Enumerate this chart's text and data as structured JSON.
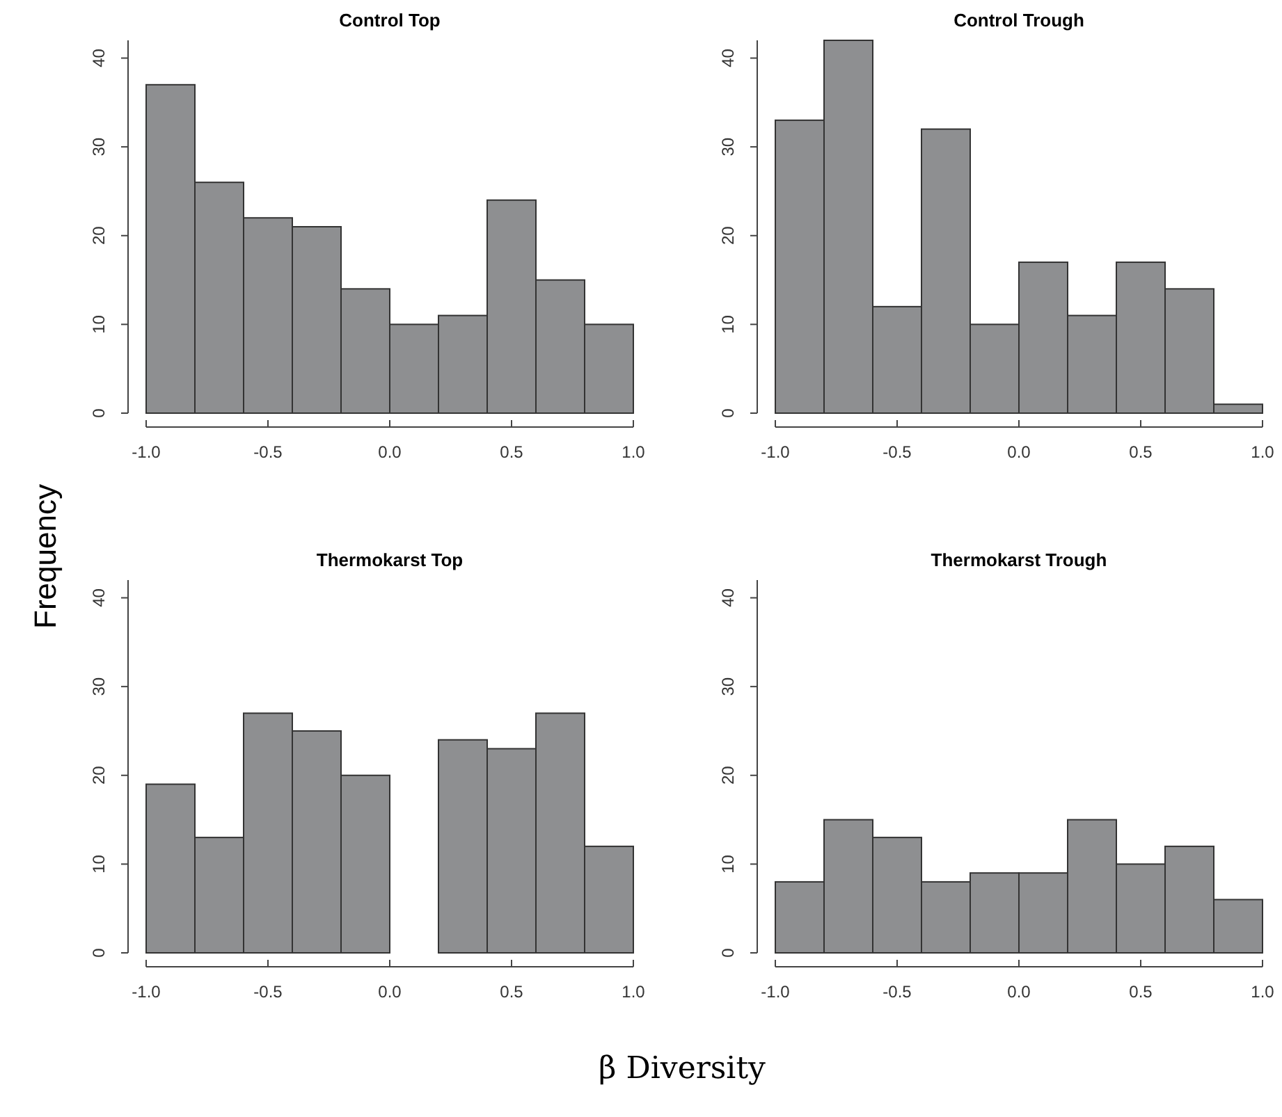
{
  "chart_data": [
    {
      "type": "histogram",
      "title": "Control Top",
      "ylabel": "Frequency",
      "bins": [
        -1,
        -0.8,
        -0.6,
        -0.4,
        -0.2,
        0,
        0.2,
        0.4,
        0.6,
        0.8,
        1
      ],
      "values": [
        37,
        26,
        22,
        21,
        14,
        10,
        11,
        24,
        15,
        10
      ],
      "color": "#8e8f91",
      "xlim": [
        -1,
        1
      ],
      "xticks": [
        {
          "value": -1,
          "label": "-1.0"
        },
        {
          "value": -0.5,
          "label": "-0.5"
        },
        {
          "value": 0,
          "label": "0.0"
        },
        {
          "value": 0.5,
          "label": "0.5"
        },
        {
          "value": 1,
          "label": "1.0"
        }
      ],
      "ylim": [
        0,
        42
      ],
      "yticks": [
        0,
        10,
        20,
        30,
        40
      ]
    },
    {
      "type": "histogram",
      "title": "Control Trough",
      "bins": [
        -1,
        -0.8,
        -0.6,
        -0.4,
        -0.2,
        0,
        0.2,
        0.4,
        0.6,
        0.8,
        1
      ],
      "values": [
        33,
        42,
        12,
        32,
        10,
        17,
        11,
        17,
        14,
        1
      ],
      "color": "#8e8f91",
      "xlim": [
        -1,
        1
      ],
      "xticks": [
        {
          "value": -1,
          "label": "-1.0"
        },
        {
          "value": -0.5,
          "label": "-0.5"
        },
        {
          "value": 0,
          "label": "0.0"
        },
        {
          "value": 0.5,
          "label": "0.5"
        },
        {
          "value": 1,
          "label": "1.0"
        }
      ],
      "ylim": [
        0,
        42
      ],
      "yticks": [
        0,
        10,
        20,
        30,
        40
      ]
    },
    {
      "type": "histogram",
      "title": "Thermokarst Top",
      "xlabel": "β Diversity",
      "bins": [
        -1,
        -0.8,
        -0.6,
        -0.4,
        -0.2,
        0,
        0.2,
        0.4,
        0.6,
        0.8,
        1
      ],
      "values": [
        19,
        13,
        27,
        25,
        20,
        0,
        24,
        23,
        27,
        12
      ],
      "color": "#8e8f91",
      "xlim": [
        -1,
        1
      ],
      "xticks": [
        {
          "value": -1,
          "label": "-1.0"
        },
        {
          "value": -0.5,
          "label": "-0.5"
        },
        {
          "value": 0,
          "label": "0.0"
        },
        {
          "value": 0.5,
          "label": "0.5"
        },
        {
          "value": 1,
          "label": "1.0"
        }
      ],
      "ylim": [
        0,
        42
      ],
      "yticks": [
        0,
        10,
        20,
        30,
        40
      ]
    },
    {
      "type": "histogram",
      "title": "Thermokarst Trough",
      "bins": [
        -1,
        -0.8,
        -0.6,
        -0.4,
        -0.2,
        0,
        0.2,
        0.4,
        0.6,
        0.8,
        1
      ],
      "values": [
        8,
        15,
        13,
        8,
        9,
        9,
        15,
        10,
        12,
        6
      ],
      "color": "#8e8f91",
      "xlim": [
        -1,
        1
      ],
      "xticks": [
        {
          "value": -1,
          "label": "-1.0"
        },
        {
          "value": -0.5,
          "label": "-0.5"
        },
        {
          "value": 0,
          "label": "0.0"
        },
        {
          "value": 0.5,
          "label": "0.5"
        },
        {
          "value": 1,
          "label": "1.0"
        }
      ],
      "ylim": [
        0,
        42
      ],
      "yticks": [
        0,
        10,
        20,
        30,
        40
      ]
    }
  ]
}
